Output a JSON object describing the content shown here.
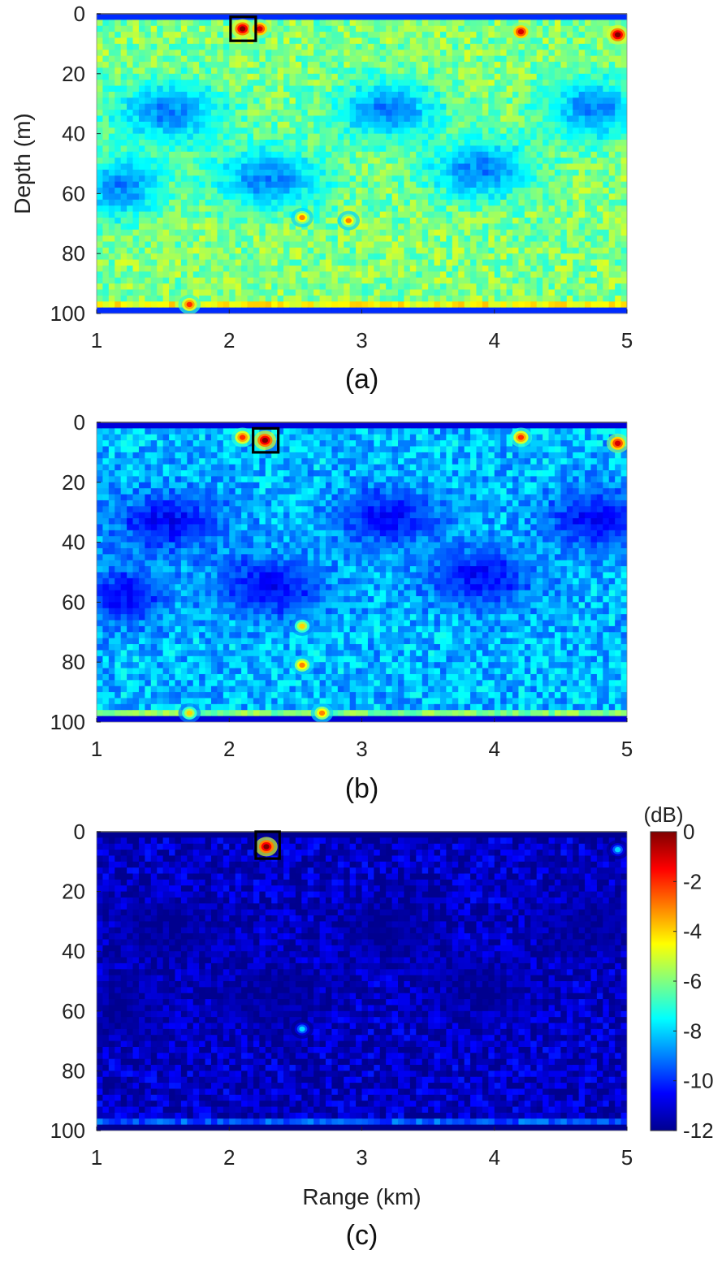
{
  "chart_data": [
    {
      "type": "heatmap",
      "panel_label": "(a)",
      "xlabel": "",
      "ylabel": "Depth (m)",
      "xlim": [
        1,
        5
      ],
      "ylim": [
        0,
        100
      ],
      "y_inverted": true,
      "xticks": [
        1,
        2,
        3,
        4,
        5
      ],
      "yticks": [
        0,
        20,
        40,
        60,
        80,
        100
      ],
      "color_range_db": [
        -12,
        0
      ],
      "background_level_db": -6,
      "low_patch_level_db": -9,
      "surface_band_db": -10,
      "bottom_band_db": -4.5,
      "target_box": {
        "range_km": [
          2.01,
          2.2
        ],
        "depth_m": [
          1,
          9
        ]
      },
      "peaks": [
        {
          "range_km": 2.1,
          "depth_m": 5,
          "db": 0
        },
        {
          "range_km": 2.23,
          "depth_m": 5,
          "db": -1
        },
        {
          "range_km": 4.2,
          "depth_m": 6,
          "db": -1
        },
        {
          "range_km": 4.93,
          "depth_m": 7,
          "db": 0
        },
        {
          "range_km": 2.55,
          "depth_m": 68,
          "db": -3
        },
        {
          "range_km": 2.9,
          "depth_m": 69,
          "db": -3
        },
        {
          "range_km": 1.7,
          "depth_m": 97,
          "db": -2
        }
      ]
    },
    {
      "type": "heatmap",
      "panel_label": "(b)",
      "xlabel": "",
      "ylabel": "",
      "xlim": [
        1,
        5
      ],
      "ylim": [
        0,
        100
      ],
      "y_inverted": true,
      "xticks": [
        1,
        2,
        3,
        4,
        5
      ],
      "yticks": [
        0,
        20,
        40,
        60,
        80,
        100
      ],
      "color_range_db": [
        -12,
        0
      ],
      "background_level_db": -8.3,
      "low_patch_level_db": -10.5,
      "surface_band_db": -11,
      "bottom_band_db": -6,
      "target_box": {
        "range_km": [
          2.18,
          2.37
        ],
        "depth_m": [
          2,
          10
        ]
      },
      "peaks": [
        {
          "range_km": 2.27,
          "depth_m": 6,
          "db": 0
        },
        {
          "range_km": 2.1,
          "depth_m": 5,
          "db": -2
        },
        {
          "range_km": 4.2,
          "depth_m": 5,
          "db": -2
        },
        {
          "range_km": 4.93,
          "depth_m": 7,
          "db": -1
        },
        {
          "range_km": 2.55,
          "depth_m": 68,
          "db": -4
        },
        {
          "range_km": 2.55,
          "depth_m": 81,
          "db": -3
        },
        {
          "range_km": 2.7,
          "depth_m": 97,
          "db": -3
        },
        {
          "range_km": 1.7,
          "depth_m": 97,
          "db": -4
        }
      ]
    },
    {
      "type": "heatmap",
      "panel_label": "(c)",
      "xlabel": "Range (km)",
      "ylabel": "",
      "xlim": [
        1,
        5
      ],
      "ylim": [
        0,
        100
      ],
      "y_inverted": true,
      "xticks": [
        1,
        2,
        3,
        4,
        5
      ],
      "yticks": [
        0,
        20,
        40,
        60,
        80,
        100
      ],
      "color_range_db": [
        -12,
        0
      ],
      "background_level_db": -11.3,
      "low_patch_level_db": -11.9,
      "surface_band_db": -12,
      "bottom_band_db": -9.5,
      "target_box": {
        "range_km": [
          2.2,
          2.38
        ],
        "depth_m": [
          0,
          9
        ]
      },
      "peaks": [
        {
          "range_km": 2.28,
          "depth_m": 5,
          "db": 0
        },
        {
          "range_km": 2.55,
          "depth_m": 66,
          "db": -8
        },
        {
          "range_km": 4.93,
          "depth_m": 6,
          "db": -8
        }
      ],
      "colorbar": {
        "unit": "(dB)",
        "ticks": [
          0,
          -2,
          -4,
          -6,
          -8,
          -10,
          -12
        ],
        "colormap": [
          "#00008f",
          "#0000ff",
          "#0080ff",
          "#00ffff",
          "#80ff80",
          "#ffff00",
          "#ff8000",
          "#ff0000",
          "#800000"
        ]
      }
    }
  ]
}
